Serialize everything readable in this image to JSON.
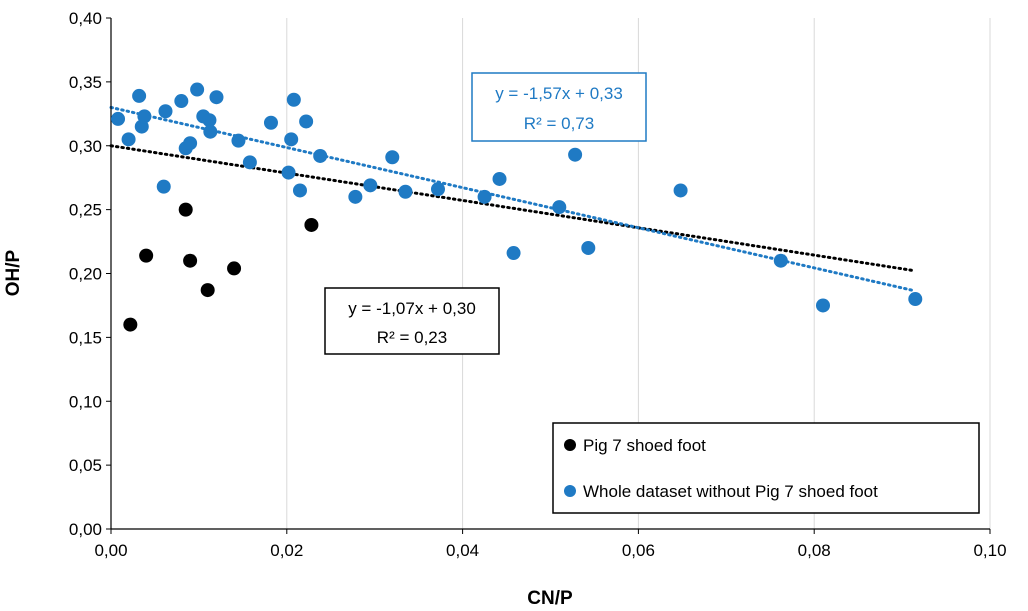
{
  "chart_data": {
    "type": "scatter",
    "xlabel": "CN/P",
    "ylabel": "OH/P",
    "xlim": [
      0,
      0.1
    ],
    "ylim": [
      0,
      0.4
    ],
    "x_ticks": [
      0,
      0.02,
      0.04,
      0.06,
      0.08,
      0.1
    ],
    "x_tick_labels": [
      "0,00",
      "0,02",
      "0,04",
      "0,06",
      "0,08",
      "0,10"
    ],
    "y_ticks": [
      0,
      0.05,
      0.1,
      0.15,
      0.2,
      0.25,
      0.3,
      0.35,
      0.4
    ],
    "y_tick_labels": [
      "0,00",
      "0,05",
      "0,10",
      "0,15",
      "0,20",
      "0,25",
      "0,30",
      "0,35",
      "0,40"
    ],
    "grid": "vertical",
    "legend_position": "bottom-right",
    "series": [
      {
        "name": "Pig 7 shoed foot",
        "color": "#000000",
        "points": [
          {
            "x": 0.0022,
            "y": 0.16
          },
          {
            "x": 0.004,
            "y": 0.214
          },
          {
            "x": 0.0085,
            "y": 0.25
          },
          {
            "x": 0.009,
            "y": 0.21
          },
          {
            "x": 0.011,
            "y": 0.187
          },
          {
            "x": 0.014,
            "y": 0.204
          },
          {
            "x": 0.0228,
            "y": 0.238
          }
        ],
        "trendline": {
          "x_range": [
            0,
            0.0915
          ],
          "slope": -1.07,
          "intercept": 0.3,
          "color": "#000000",
          "style": "dotted"
        },
        "equation": "y = -1,07x + 0,30",
        "r_squared": "R² = 0,23"
      },
      {
        "name": "Whole dataset without Pig 7 shoed foot",
        "color": "#1f7ac4",
        "points": [
          {
            "x": 0.0008,
            "y": 0.321
          },
          {
            "x": 0.002,
            "y": 0.305
          },
          {
            "x": 0.0032,
            "y": 0.339
          },
          {
            "x": 0.0035,
            "y": 0.315
          },
          {
            "x": 0.0038,
            "y": 0.323
          },
          {
            "x": 0.006,
            "y": 0.268
          },
          {
            "x": 0.0062,
            "y": 0.327
          },
          {
            "x": 0.008,
            "y": 0.335
          },
          {
            "x": 0.0085,
            "y": 0.298
          },
          {
            "x": 0.009,
            "y": 0.302
          },
          {
            "x": 0.0098,
            "y": 0.344
          },
          {
            "x": 0.0105,
            "y": 0.323
          },
          {
            "x": 0.0112,
            "y": 0.32
          },
          {
            "x": 0.0113,
            "y": 0.311
          },
          {
            "x": 0.012,
            "y": 0.338
          },
          {
            "x": 0.0145,
            "y": 0.304
          },
          {
            "x": 0.0158,
            "y": 0.287
          },
          {
            "x": 0.0182,
            "y": 0.318
          },
          {
            "x": 0.0202,
            "y": 0.279
          },
          {
            "x": 0.0205,
            "y": 0.305
          },
          {
            "x": 0.0208,
            "y": 0.336
          },
          {
            "x": 0.0215,
            "y": 0.265
          },
          {
            "x": 0.0222,
            "y": 0.319
          },
          {
            "x": 0.0238,
            "y": 0.292
          },
          {
            "x": 0.0278,
            "y": 0.26
          },
          {
            "x": 0.0295,
            "y": 0.269
          },
          {
            "x": 0.032,
            "y": 0.291
          },
          {
            "x": 0.0335,
            "y": 0.264
          },
          {
            "x": 0.0372,
            "y": 0.266
          },
          {
            "x": 0.0425,
            "y": 0.26
          },
          {
            "x": 0.0442,
            "y": 0.274
          },
          {
            "x": 0.0458,
            "y": 0.216
          },
          {
            "x": 0.051,
            "y": 0.252
          },
          {
            "x": 0.0528,
            "y": 0.293
          },
          {
            "x": 0.0543,
            "y": 0.22
          },
          {
            "x": 0.0648,
            "y": 0.265
          },
          {
            "x": 0.0762,
            "y": 0.21
          },
          {
            "x": 0.081,
            "y": 0.175
          },
          {
            "x": 0.0915,
            "y": 0.18
          }
        ],
        "trendline": {
          "x_range": [
            0,
            0.0915
          ],
          "slope": -1.57,
          "intercept": 0.33,
          "color": "#1f7ac4",
          "style": "dotted"
        },
        "equation": "y = -1,57x + 0,33",
        "r_squared": "R² = 0,73"
      }
    ]
  }
}
